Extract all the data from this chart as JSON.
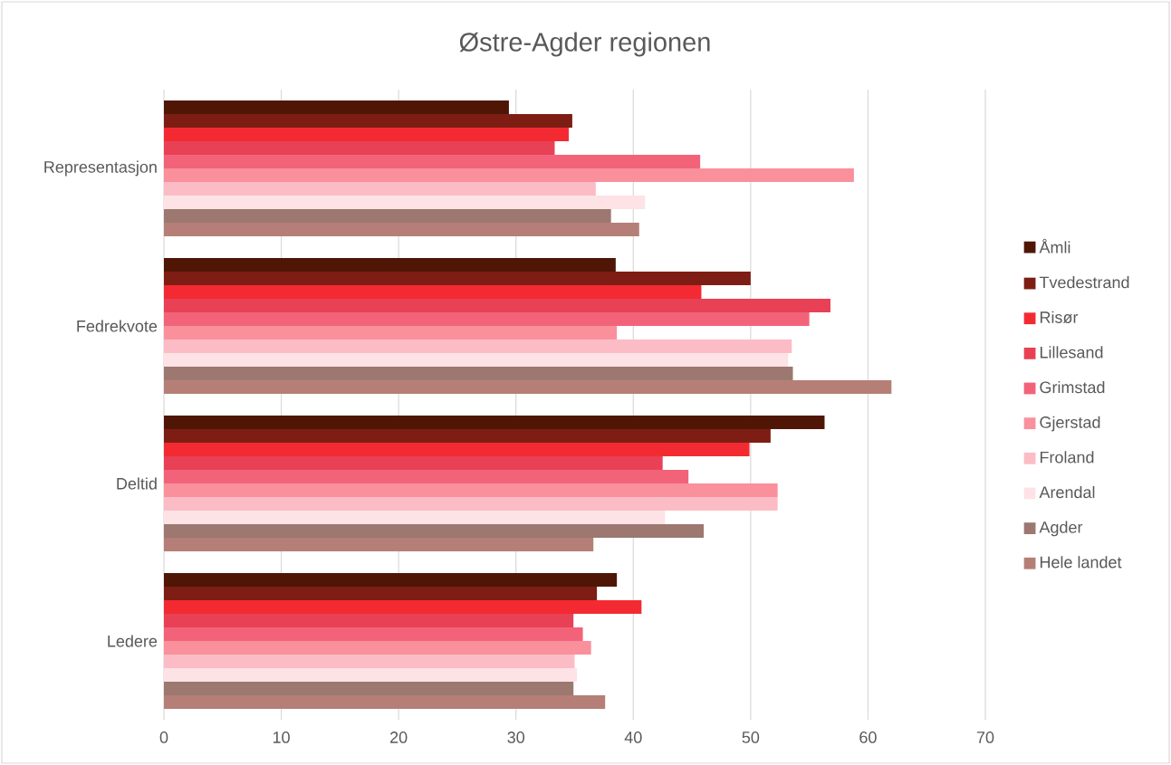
{
  "chart_data": {
    "type": "bar",
    "orientation": "horizontal",
    "title": "Østre-Agder regionen",
    "categories": [
      "Representasjon",
      "Fedrekvote",
      "Deltid",
      "Ledere"
    ],
    "series": [
      {
        "name": "Åmli",
        "color": "#4f1605",
        "values": [
          29.4,
          38.5,
          56.3,
          38.6
        ]
      },
      {
        "name": "Tvedestrand",
        "color": "#7e1d13",
        "values": [
          34.8,
          50.0,
          51.7,
          36.9
        ]
      },
      {
        "name": "Risør",
        "color": "#f42a32",
        "values": [
          34.5,
          45.8,
          49.9,
          40.7
        ]
      },
      {
        "name": "Lillesand",
        "color": "#e84055",
        "values": [
          33.3,
          56.8,
          42.5,
          34.9
        ]
      },
      {
        "name": "Grimstad",
        "color": "#f26379",
        "values": [
          45.7,
          55.0,
          44.7,
          35.7
        ]
      },
      {
        "name": "Gjerstad",
        "color": "#f9909b",
        "values": [
          58.8,
          38.6,
          52.3,
          36.4
        ]
      },
      {
        "name": "Froland",
        "color": "#fcbcc5",
        "values": [
          36.8,
          53.5,
          52.3,
          35.0
        ]
      },
      {
        "name": "Arendal",
        "color": "#fde3e6",
        "values": [
          41.0,
          53.2,
          42.7,
          35.2
        ]
      },
      {
        "name": "Agder",
        "color": "#9c7870",
        "values": [
          38.1,
          53.6,
          46.0,
          34.9
        ]
      },
      {
        "name": "Hele landet",
        "color": "#b57f77",
        "values": [
          40.5,
          62.0,
          36.6,
          37.6
        ]
      }
    ],
    "xlim": [
      0,
      70
    ],
    "xticks": [
      0,
      10,
      20,
      30,
      40,
      50,
      60,
      70
    ],
    "grid": "x",
    "legend": "right"
  }
}
